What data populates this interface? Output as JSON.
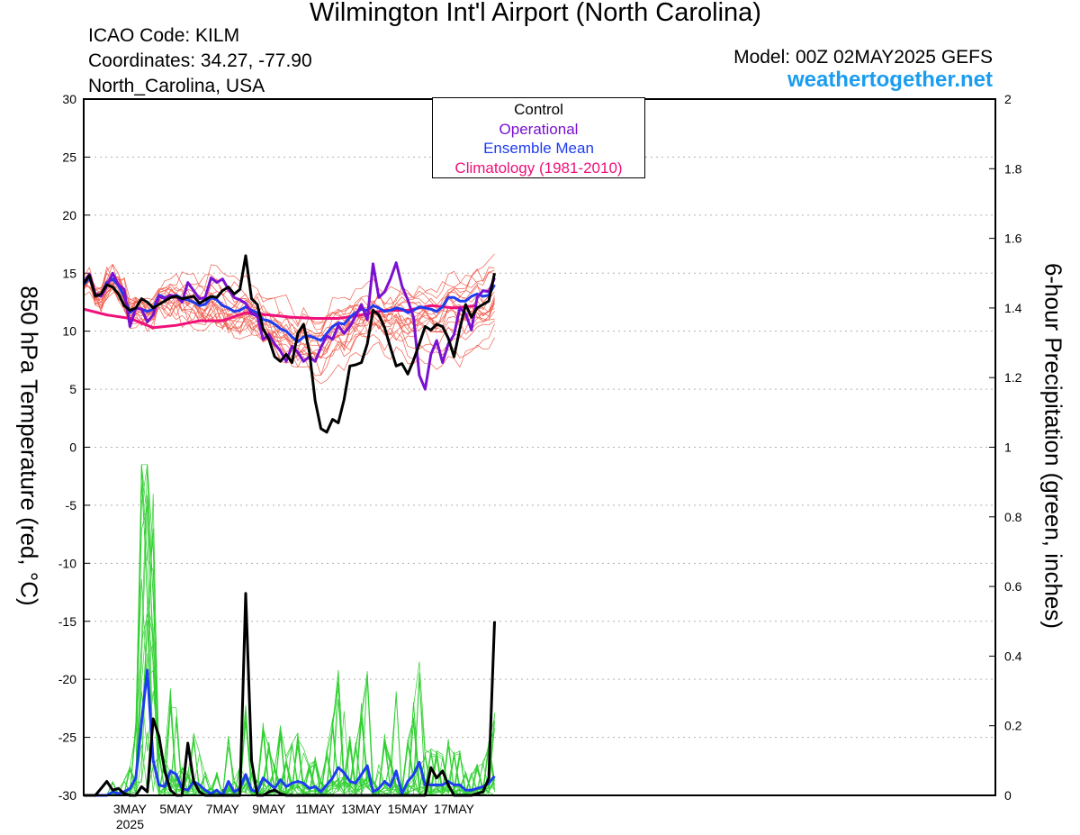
{
  "header": {
    "title": "Wilmington Int'l Airport (North Carolina)",
    "icao": "ICAO Code: KILM",
    "coordinates": "Coordinates: 34.27, -77.90",
    "region": "North_Carolina, USA",
    "model": "Model: 00Z 02MAY2025 GEFS",
    "site": "weathertogether.net"
  },
  "chart_data": {
    "type": "line",
    "x_labels": [
      "3MAY",
      "5MAY",
      "7MAY",
      "9MAY",
      "11MAY",
      "13MAY",
      "15MAY",
      "17MAY"
    ],
    "x_sublabel": "2025",
    "left_axis": {
      "label": "850 hPa Temperature (red, °C)",
      "range": [
        -30,
        30
      ],
      "ticks": [
        "30",
        "25",
        "20",
        "15",
        "10",
        "5",
        "0",
        "-5",
        "-10",
        "-15",
        "-20",
        "-25",
        "-30"
      ]
    },
    "right_axis": {
      "label": "6-hour Precipitation (green, inches)",
      "range": [
        0,
        2
      ],
      "ticks": [
        "2",
        "1.8",
        "1.6",
        "1.4",
        "1.2",
        "1",
        "0.8",
        "0.6",
        "0.4",
        "0.2",
        "0"
      ]
    },
    "grid": true,
    "legend": [
      "Control",
      "Operational",
      "Ensemble Mean",
      "Climatology (1981-2010)"
    ],
    "colors": {
      "control": "#000000",
      "operational": "#7a10d0",
      "mean": "#1e3cf0",
      "climatology": "#f0107a",
      "members_temp": "#f06050",
      "members_precip": "#30d030",
      "site": "#1a9cf0"
    },
    "series": [
      {
        "name": "Control",
        "axis": "left",
        "values": [
          14.1,
          14.8,
          13.0,
          13.2,
          14.0,
          13.8,
          13.2,
          12.2,
          11.8,
          12.0,
          12.8,
          12.5,
          12.0,
          12.3,
          12.6,
          12.9,
          13.0,
          12.8,
          12.9,
          13.0,
          12.4,
          12.7,
          13.0,
          12.9,
          13.5,
          13.8,
          13.2,
          13.6,
          16.5,
          12.8,
          12.3,
          10.2,
          9.3,
          7.8,
          7.4,
          8.0,
          7.3,
          9.8,
          10.6,
          8.2,
          4.0,
          1.6,
          1.3,
          2.4,
          2.1,
          4.1,
          7.0,
          7.1,
          7.3,
          8.9,
          11.8,
          11.4,
          10.3,
          8.6,
          7.0,
          7.2,
          6.3,
          7.5,
          8.9,
          10.4,
          10.1,
          10.6,
          10.4,
          9.4,
          7.8,
          10.2,
          12.3,
          11.2,
          12.0,
          12.3,
          12.6,
          15.0
        ]
      },
      {
        "name": "Operational",
        "axis": "left",
        "values": [
          14.2,
          14.9,
          13.2,
          13.0,
          13.9,
          15.0,
          14.0,
          13.6,
          10.4,
          12.0,
          11.9,
          10.8,
          11.4,
          13.0,
          12.8,
          13.1,
          13.0,
          12.5,
          14.2,
          13.5,
          12.8,
          12.9,
          14.6,
          14.2,
          14.5,
          13.6,
          12.9,
          12.7,
          12.4,
          11.5,
          11.3,
          9.3,
          9.7,
          8.9,
          8.3,
          7.4,
          8.7,
          8.2,
          7.4,
          7.8,
          7.4,
          8.6,
          9.6,
          9.3,
          10.5,
          9.8,
          10.4,
          11.3,
          12.3,
          11.0,
          15.8,
          12.9,
          13.4,
          14.5,
          15.9,
          13.9,
          12.7,
          11.2,
          6.2,
          5.0,
          8.0,
          9.2,
          7.3,
          8.9,
          9.7,
          12.0,
          11.5,
          10.1,
          12.9,
          13.5,
          13.4,
          14.6
        ]
      },
      {
        "name": "Ensemble Mean",
        "axis": "left",
        "values": [
          14.0,
          14.6,
          13.2,
          13.1,
          14.2,
          14.5,
          13.9,
          13.0,
          11.6,
          12.0,
          11.9,
          11.7,
          11.9,
          13.1,
          12.9,
          12.9,
          13.1,
          12.8,
          12.7,
          12.5,
          12.2,
          12.3,
          12.9,
          12.7,
          12.2,
          12.0,
          11.7,
          11.8,
          12.1,
          11.8,
          11.6,
          11.0,
          10.9,
          10.6,
          10.2,
          10.0,
          9.5,
          9.1,
          9.5,
          9.6,
          9.4,
          9.2,
          9.8,
          10.4,
          10.7,
          10.6,
          11.2,
          11.6,
          11.9,
          11.8,
          12.2,
          12.0,
          11.7,
          11.8,
          12.0,
          11.9,
          11.6,
          11.8,
          12.1,
          12.0,
          11.9,
          11.7,
          12.1,
          12.9,
          12.9,
          12.6,
          12.6,
          13.0,
          13.2,
          13.0,
          13.1,
          14.0
        ]
      },
      {
        "name": "Climatology (1981-2010)",
        "axis": "left",
        "values": [
          11.9,
          11.4,
          11.1,
          10.3,
          10.5,
          10.9,
          10.9,
          11.6,
          11.4,
          11.2,
          11.1,
          11.1,
          11.4,
          11.8,
          11.8,
          12.2,
          12.0,
          12.2
        ]
      },
      {
        "name": "Control",
        "axis": "right",
        "values": [
          0,
          0,
          0,
          0.02,
          0.04,
          0.015,
          0.02,
          0.005,
          0,
          0,
          0.025,
          0.01,
          0.22,
          0.17,
          0.07,
          0.015,
          0,
          0,
          0.15,
          0.04,
          0.01,
          0,
          0,
          0,
          0,
          0,
          0,
          0,
          0.58,
          0.1,
          0,
          0,
          0.01,
          0.015,
          0.005,
          0,
          0,
          0,
          0,
          0,
          0,
          0,
          0,
          0,
          0,
          0,
          0,
          0,
          0,
          0,
          0,
          0,
          0,
          0,
          0,
          0,
          0,
          0,
          0,
          0,
          0.08,
          0.05,
          0.07,
          0.03,
          0,
          0,
          0,
          0,
          0.005,
          0.01,
          0.05,
          0.5
        ]
      },
      {
        "name": "Ensemble Mean",
        "axis": "right",
        "values": [
          0,
          0,
          0,
          0,
          0,
          0.01,
          0.005,
          0.01,
          0.02,
          0.05,
          0.21,
          0.36,
          0.1,
          0.03,
          0.025,
          0.07,
          0.06,
          0.02,
          0.015,
          0.04,
          0.03,
          0.015,
          0.005,
          0.015,
          0,
          0.04,
          0.01,
          0.02,
          0.06,
          0.015,
          0.01,
          0.05,
          0.035,
          0.02,
          0.045,
          0.025,
          0.035,
          0.04,
          0.035,
          0.02,
          0.025,
          0.01,
          0.03,
          0.05,
          0.08,
          0.065,
          0.04,
          0.035,
          0.06,
          0.085,
          0.01,
          0.02,
          0.04,
          0.025,
          0.07,
          0.005,
          0.04,
          0.06,
          0.095,
          0.03,
          0.03,
          0.03,
          0.03,
          0.04,
          0.03,
          0.03,
          0.015,
          0.015,
          0.02,
          0.025,
          0.035,
          0.055
        ]
      }
    ]
  }
}
